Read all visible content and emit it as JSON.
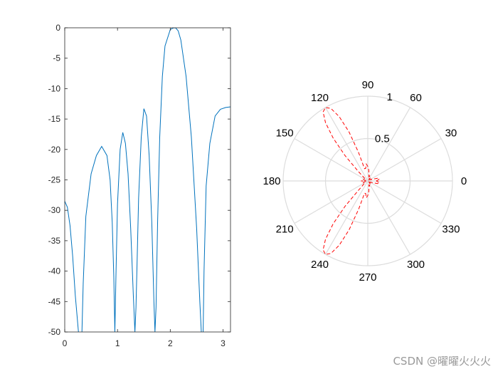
{
  "chart_data": [
    {
      "type": "line",
      "xlim": [
        0,
        3.1416
      ],
      "ylim": [
        -50,
        0
      ],
      "xticks": [
        0,
        1,
        2,
        3
      ],
      "yticks": [
        0,
        -5,
        -10,
        -15,
        -20,
        -25,
        -30,
        -35,
        -40,
        -45,
        -50
      ],
      "grid": false,
      "series": [
        {
          "color": "#0072BD",
          "x": [
            0,
            0.05,
            0.1,
            0.15,
            0.2,
            0.25,
            0.28,
            0.3,
            0.32,
            0.35,
            0.4,
            0.5,
            0.6,
            0.7,
            0.8,
            0.86,
            0.9,
            0.93,
            0.95,
            0.97,
            1.0,
            1.05,
            1.1,
            1.15,
            1.2,
            1.25,
            1.3,
            1.33,
            1.35,
            1.37,
            1.4,
            1.45,
            1.5,
            1.55,
            1.6,
            1.65,
            1.69,
            1.71,
            1.73,
            1.76,
            1.8,
            1.85,
            1.9,
            2.0,
            2.05,
            2.1,
            2.15,
            2.2,
            2.3,
            2.4,
            2.5,
            2.56,
            2.6,
            2.62,
            2.64,
            2.68,
            2.75,
            2.85,
            2.95,
            3.05,
            3.1416
          ],
          "y": [
            -28.5,
            -29.5,
            -32.5,
            -37.5,
            -44,
            -49,
            -52,
            -53,
            -52,
            -42,
            -31,
            -24,
            -21,
            -19.5,
            -21,
            -25,
            -32,
            -41,
            -50,
            -41,
            -29,
            -20,
            -17.2,
            -19,
            -24,
            -33,
            -44,
            -50,
            -46,
            -39,
            -28,
            -18,
            -13.3,
            -14.5,
            -21,
            -32,
            -45,
            -50,
            -46,
            -32,
            -18,
            -8,
            -3,
            -0.3,
            -0.05,
            0,
            -0.5,
            -2,
            -8,
            -18,
            -33,
            -45,
            -52,
            -52,
            -40,
            -26,
            -19,
            -14.5,
            -13.4,
            -13.1,
            -13.0
          ]
        }
      ]
    },
    {
      "type": "polar",
      "rlim": [
        0,
        1
      ],
      "theta_ticks": [
        "0",
        "30",
        "60",
        "90",
        "120",
        "150",
        "180",
        "210",
        "240",
        "270",
        "300",
        "330"
      ],
      "r_ticks": [
        "0.5",
        "1"
      ],
      "grid": true,
      "series": [
        {
          "color": "#FF0000",
          "style": "dashed",
          "theta_deg": [
            0,
            5,
            10,
            15,
            20,
            25,
            30,
            40,
            50,
            60,
            70,
            75,
            80,
            85,
            90,
            95,
            100,
            105,
            108,
            111,
            114,
            117,
            120,
            123,
            126,
            129,
            132,
            135,
            140,
            150,
            160,
            170,
            180,
            190,
            200,
            210,
            220,
            225,
            228,
            231,
            234,
            237,
            240,
            243,
            246,
            249,
            252,
            255,
            260,
            265,
            270,
            275,
            280,
            285,
            290,
            300,
            310,
            320,
            330,
            335,
            340,
            345,
            350,
            355,
            360
          ],
          "r": [
            0.1,
            0.12,
            0.14,
            0.12,
            0.06,
            0.03,
            0.05,
            0.02,
            0.04,
            0.03,
            0.06,
            0.05,
            0.08,
            0.13,
            0.17,
            0.2,
            0.15,
            0.15,
            0.35,
            0.62,
            0.83,
            0.96,
            1.0,
            0.97,
            0.85,
            0.65,
            0.4,
            0.16,
            0.05,
            0.04,
            0.06,
            0.03,
            0.08,
            0.03,
            0.06,
            0.04,
            0.07,
            0.16,
            0.4,
            0.65,
            0.85,
            0.97,
            1.0,
            0.96,
            0.83,
            0.62,
            0.35,
            0.15,
            0.15,
            0.2,
            0.17,
            0.13,
            0.08,
            0.05,
            0.06,
            0.03,
            0.04,
            0.02,
            0.05,
            0.03,
            0.06,
            0.12,
            0.14,
            0.12,
            0.1
          ]
        }
      ]
    }
  ],
  "watermark": "CSDN @曜曜火火火"
}
